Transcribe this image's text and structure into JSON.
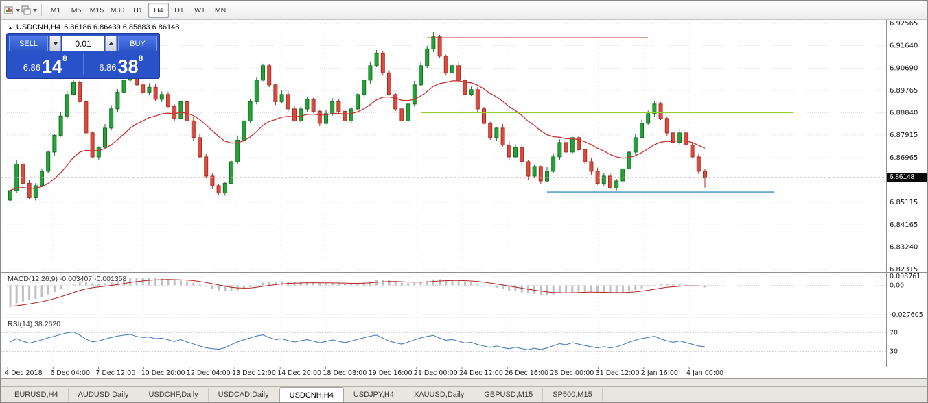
{
  "toolbar": {
    "timeframes": [
      "M1",
      "M5",
      "M15",
      "M30",
      "H1",
      "H4",
      "D1",
      "W1",
      "MN"
    ],
    "active_timeframe": "H4",
    "icons": [
      "new-chart-icon",
      "chart-profiles-icon"
    ]
  },
  "header": {
    "marker": "▲",
    "symbol": "USDCNH,H4",
    "ohlc": "6.86186 6.86439 6.85883 6.86148"
  },
  "trade_panel": {
    "sell_label": "SELL",
    "buy_label": "BUY",
    "lot": "0.01",
    "sell_price_prefix": "6.86",
    "sell_price_big": "14",
    "sell_price_sup": "8",
    "buy_price_prefix": "6.86",
    "buy_price_big": "38",
    "buy_price_sup": "8"
  },
  "current_price": "6.86148",
  "macd_panel": {
    "label": "MACD(12,26,9) -0.003407 -0.001358"
  },
  "rsi_panel": {
    "label": "RSI(14) 38.2620"
  },
  "tabs": [
    "EURUSD,H4",
    "AUDUSD,Daily",
    "USDCHF,Daily",
    "USDCAD,Daily",
    "USDCNH,H4",
    "USDJPY,H4",
    "XAUUSD,Daily",
    "GBPUSD,M15",
    "SP500,M15"
  ],
  "active_tab": "USDCNH,H4",
  "colors": {
    "candle_up": "#24a437",
    "candle_up_border": "#157225",
    "candle_down": "#dd4b3e",
    "candle_down_border": "#a82e24",
    "ma": "#c83232",
    "macd_hist": "#c0c0c0",
    "macd_signal": "#b22222",
    "rsi": "#4a7ebc",
    "panel_blue": "#2a52c8",
    "badge_bg": "#0a0a0a"
  },
  "chart_data": {
    "type": "candlestick",
    "symbol": "USDCNH",
    "timeframe": "H4",
    "last_bar_ohlc": {
      "open": 6.86186,
      "high": 6.86439,
      "low": 6.85883,
      "close": 6.86148
    },
    "bid": 6.86148,
    "ask": 6.86388,
    "price_axis": {
      "min": 6.82315,
      "max": 6.92565,
      "labels": [
        "6.92565",
        "6.91640",
        "6.90690",
        "6.89765",
        "6.88840",
        "6.87915",
        "6.86965",
        "6.86040",
        "6.85115",
        "6.84165",
        "6.83240",
        "6.82315"
      ]
    },
    "time_axis": [
      "4 Dec 2018",
      "6 Dec 04:00",
      "7 Dec 12:00",
      "10 Dec 20:00",
      "12 Dec 04:00",
      "13 Dec 12:00",
      "14 Dec 20:00",
      "18 Dec 08:00",
      "19 Dec 16:00",
      "21 Dec 00:00",
      "24 Dec 12:00",
      "26 Dec 16:00",
      "28 Dec 00:00",
      "31 Dec 12:00",
      "2 Jan 16:00",
      "4 Jan 00:00"
    ],
    "first_open": 6.852,
    "closes": [
      6.856,
      6.867,
      6.859,
      6.853,
      6.858,
      6.864,
      6.872,
      6.879,
      6.887,
      6.896,
      6.901,
      6.893,
      6.88,
      6.87,
      6.874,
      6.882,
      6.89,
      6.897,
      6.902,
      6.906,
      6.9,
      6.897,
      6.899,
      6.894,
      6.896,
      6.891,
      6.886,
      6.893,
      6.885,
      6.878,
      6.87,
      6.862,
      6.858,
      6.855,
      6.859,
      6.868,
      6.877,
      6.885,
      6.893,
      6.902,
      6.908,
      6.9,
      6.893,
      6.896,
      6.89,
      6.885,
      6.89,
      6.894,
      6.889,
      6.884,
      6.888,
      6.893,
      6.889,
      6.885,
      6.89,
      6.896,
      6.902,
      6.908,
      6.913,
      6.905,
      6.896,
      6.89,
      6.885,
      6.892,
      6.9,
      6.908,
      6.915,
      6.92,
      6.912,
      6.905,
      6.908,
      6.902,
      6.896,
      6.898,
      6.89,
      6.884,
      6.878,
      6.882,
      6.875,
      6.87,
      6.874,
      6.868,
      6.862,
      6.866,
      6.86,
      6.864,
      6.87,
      6.876,
      6.872,
      6.878,
      6.873,
      6.868,
      6.864,
      6.859,
      6.862,
      6.857,
      6.86,
      6.865,
      6.872,
      6.878,
      6.884,
      6.888,
      6.892,
      6.886,
      6.88,
      6.876,
      6.88,
      6.875,
      6.87,
      6.864,
      6.86148
    ],
    "moving_average": {
      "type": "ema",
      "period": 20
    },
    "hlines": [
      {
        "price": 6.9196,
        "color": "#cc382c",
        "from_bar": 66,
        "to_bar": 101,
        "name": "resistance-line"
      },
      {
        "price": 6.8884,
        "color": "#9acd32",
        "from_bar": 65,
        "to_bar": 124,
        "name": "mid-support-line"
      },
      {
        "price": 6.8554,
        "color": "#3f8fbf",
        "from_bar": 85,
        "to_bar": 121,
        "name": "lower-support-line"
      }
    ],
    "macd": {
      "fast": 12,
      "slow": 26,
      "signal": 9,
      "current": [
        -0.003407,
        -0.001358
      ],
      "scale_labels": [
        "0.008761",
        "0.00",
        "-0.027605"
      ]
    },
    "rsi": {
      "period": 14,
      "current": 38.262,
      "levels": [
        70,
        30
      ]
    }
  }
}
